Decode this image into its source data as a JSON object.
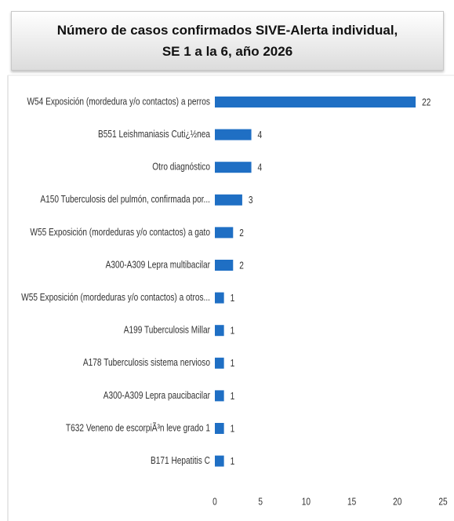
{
  "chart_data": {
    "type": "bar",
    "orientation": "horizontal",
    "title": [
      "Número de casos confirmados SIVE-Alerta individual,",
      "SE 1 a la 6, año 2026"
    ],
    "categories": [
      "W54 Exposición (mordedura y/o contactos) a perros",
      "B551 Leishmaniasis Cuti¿½nea",
      "Otro diagnóstico",
      "A150 Tuberculosis del pulmón, confirmada por...",
      "W55 Exposición (mordeduras y/o contactos) a gato",
      "A300-A309 Lepra multibacilar",
      "W55 Exposición (mordeduras y/o contactos) a otros...",
      "A199 Tuberculosis Millar",
      "A178 Tuberculosis sistema nervioso",
      "A300-A309 Lepra paucibacilar",
      "T632 Veneno de escorpiÃ³n leve grado 1",
      "B171 Hepatitis C"
    ],
    "values": [
      22,
      4,
      4,
      3,
      2,
      2,
      1,
      1,
      1,
      1,
      1,
      1
    ],
    "color": "#1f6fc4",
    "xlim": [
      0,
      25
    ],
    "xticks": [
      0,
      5,
      10,
      15,
      20,
      25
    ],
    "grid": false
  }
}
